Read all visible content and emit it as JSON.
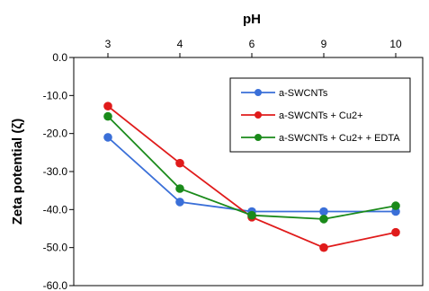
{
  "chart_data": {
    "type": "line",
    "xlabel": "pH",
    "ylabel": "Zeta potential  (ζ)",
    "categories": [
      "3",
      "4",
      "6",
      "9",
      "10"
    ],
    "ylim": [
      -60,
      0
    ],
    "yticks": [
      0,
      -10,
      -20,
      -30,
      -40,
      -50,
      -60
    ],
    "ytick_labels": [
      "0.0",
      "-10.0",
      "-20.0",
      "-30.0",
      "-40.0",
      "-50.0",
      "-60.0"
    ],
    "x_axis_position": "top",
    "grid": false,
    "legend_position": "right",
    "series": [
      {
        "name": "a-SWCNTs",
        "color": "#3a6fd8",
        "values": [
          -21,
          -38,
          -40.5,
          -40.5,
          -40.5
        ]
      },
      {
        "name": "a-SWCNTs + Cu2+",
        "color": "#e01b1b",
        "values": [
          -12.8,
          -27.8,
          -42,
          -50,
          -46
        ]
      },
      {
        "name": "a-SWCNTs + Cu2+ + EDTA",
        "color": "#1a8a1a",
        "values": [
          -15.5,
          -34.5,
          -41.5,
          -42.5,
          -39
        ]
      }
    ]
  }
}
